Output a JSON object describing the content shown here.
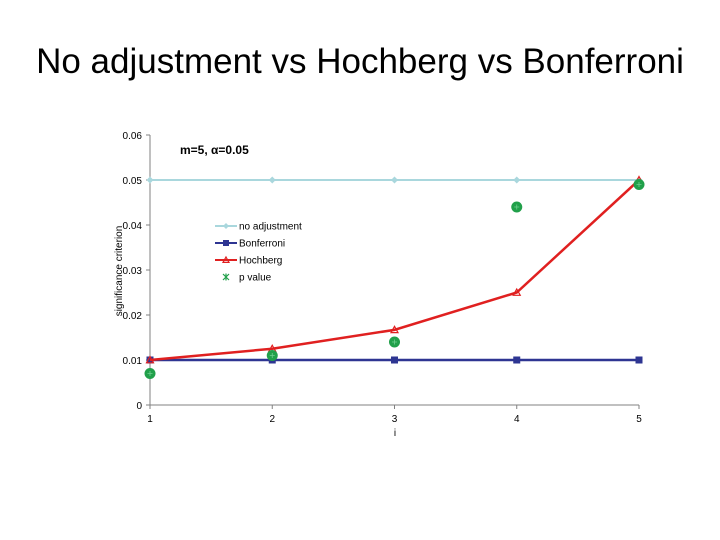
{
  "slide": {
    "title": "No adjustment vs Hochberg vs Bonferroni"
  },
  "chart_data": {
    "type": "line",
    "title": "",
    "annotation": "m=5, α=0.05",
    "xlabel": "i",
    "ylabel": "significance criterion",
    "x": [
      1,
      2,
      3,
      4,
      5
    ],
    "xticks": [
      "1",
      "2",
      "3",
      "4",
      "5"
    ],
    "ylim": [
      0,
      0.06
    ],
    "yticks": [
      "0",
      "0.01",
      "0.02",
      "0.03",
      "0.04",
      "0.05",
      "0.06"
    ],
    "grid": false,
    "legend_placement": "center-left",
    "series": [
      {
        "name": "no adjustment",
        "kind": "line",
        "marker": "diamond",
        "color": "#a9d7dd",
        "values": [
          0.05,
          0.05,
          0.05,
          0.05,
          0.05
        ]
      },
      {
        "name": "Bonferroni",
        "kind": "line",
        "marker": "square",
        "color": "#2e3592",
        "values": [
          0.01,
          0.01,
          0.01,
          0.01,
          0.01
        ]
      },
      {
        "name": "Hochberg",
        "kind": "line",
        "marker": "triangle",
        "color": "#e02020",
        "values": [
          0.01,
          0.0125,
          0.0167,
          0.025,
          0.05
        ]
      },
      {
        "name": "p value",
        "kind": "scatter",
        "marker": "circle",
        "color": "#21a04a",
        "values": [
          0.007,
          0.011,
          0.014,
          0.044,
          0.049
        ]
      }
    ]
  }
}
